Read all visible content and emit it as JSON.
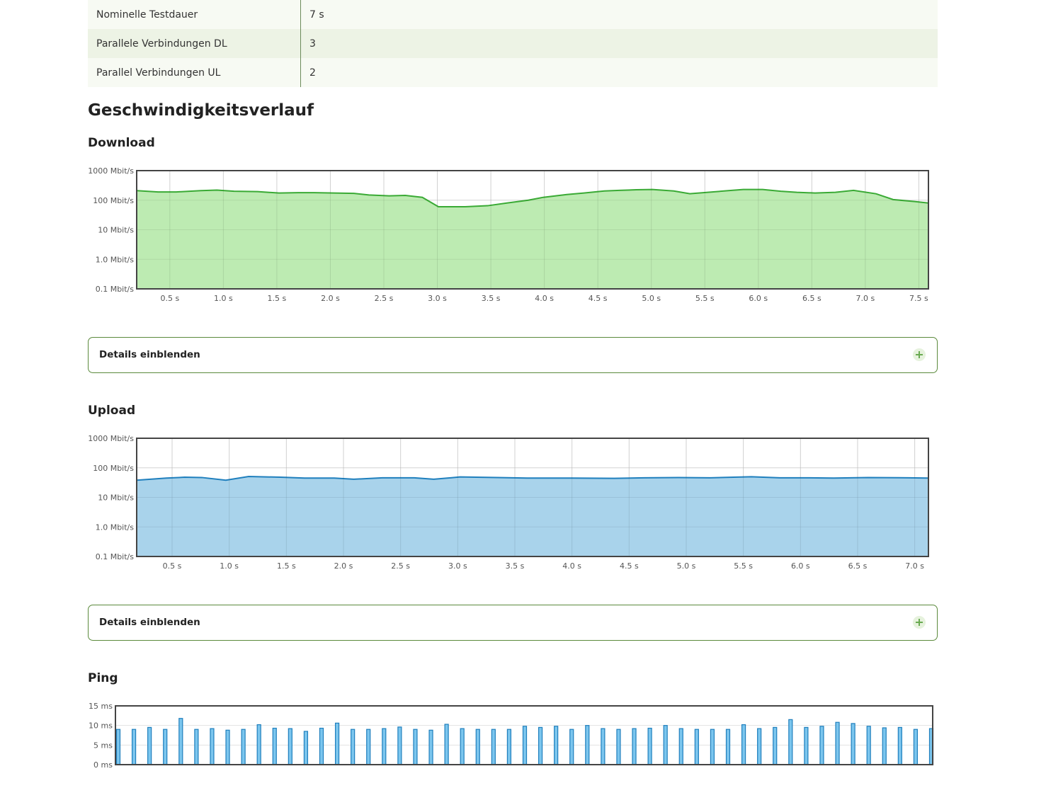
{
  "info_rows": [
    {
      "label": "Nominelle Testdauer",
      "value": "7 s"
    },
    {
      "label": "Parallele Verbindungen DL",
      "value": "3"
    },
    {
      "label": "Parallel Verbindungen UL",
      "value": "2"
    }
  ],
  "section_title": "Geschwindigkeitsverlauf",
  "details_label": "Details einblenden",
  "plus_icon": "plus-circle-icon",
  "chart_data": [
    {
      "type": "area",
      "heading": "Download",
      "scale": "log",
      "ylim": [
        0.1,
        1000
      ],
      "y_ticks": [
        "1000 Mbit/s",
        "100 Mbit/s",
        "10 Mbit/s",
        "1.0 Mbit/s",
        "0.1 Mbit/s"
      ],
      "y_tick_values": [
        1000,
        100,
        10,
        1,
        0.1
      ],
      "xlim": [
        0.19,
        7.59
      ],
      "x_ticks": [
        "0.5 s",
        "1.0 s",
        "1.5 s",
        "2.0 s",
        "2.5 s",
        "3.0 s",
        "3.5 s",
        "4.0 s",
        "4.5 s",
        "5.0 s",
        "5.5 s",
        "6.0 s",
        "6.5 s",
        "7.0 s",
        "7.5 s"
      ],
      "x_tick_values": [
        0.5,
        1.0,
        1.5,
        2.0,
        2.5,
        3.0,
        3.5,
        4.0,
        4.5,
        5.0,
        5.5,
        6.0,
        6.5,
        7.0,
        7.5
      ],
      "x": [
        0.19,
        0.39,
        0.56,
        0.79,
        0.94,
        1.1,
        1.32,
        1.52,
        1.7,
        1.85,
        2.03,
        2.22,
        2.36,
        2.55,
        2.7,
        2.86,
        3.01,
        3.26,
        3.47,
        3.65,
        3.85,
        3.99,
        4.21,
        4.37,
        4.56,
        4.7,
        4.86,
        5.01,
        5.21,
        5.36,
        5.57,
        5.72,
        5.86,
        6.04,
        6.21,
        6.36,
        6.53,
        6.72,
        6.89,
        7.1,
        7.26,
        7.46,
        7.59
      ],
      "y": [
        210,
        190,
        190,
        210,
        220,
        200,
        195,
        175,
        180,
        180,
        175,
        170,
        150,
        140,
        145,
        125,
        60,
        60,
        65,
        80,
        100,
        125,
        155,
        175,
        205,
        215,
        225,
        230,
        205,
        165,
        190,
        210,
        230,
        230,
        200,
        185,
        175,
        185,
        215,
        165,
        105,
        90,
        80
      ],
      "line_color": "#3aaa35",
      "fill_color": "#b2e8a5"
    },
    {
      "type": "area",
      "heading": "Upload",
      "scale": "log",
      "ylim": [
        0.1,
        1000
      ],
      "y_ticks": [
        "1000 Mbit/s",
        "100 Mbit/s",
        "10 Mbit/s",
        "1.0 Mbit/s",
        "0.1 Mbit/s"
      ],
      "y_tick_values": [
        1000,
        100,
        10,
        1,
        0.1
      ],
      "xlim": [
        0.19,
        7.12
      ],
      "x_ticks": [
        "0.5 s",
        "1.0 s",
        "1.5 s",
        "2.0 s",
        "2.5 s",
        "3.0 s",
        "3.5 s",
        "4.0 s",
        "4.5 s",
        "5.0 s",
        "5.5 s",
        "6.0 s",
        "6.5 s",
        "7.0 s"
      ],
      "x_tick_values": [
        0.5,
        1.0,
        1.5,
        2.0,
        2.5,
        3.0,
        3.5,
        4.0,
        4.5,
        5.0,
        5.5,
        6.0,
        6.5,
        7.0
      ],
      "x": [
        0.19,
        0.45,
        0.61,
        0.76,
        0.97,
        1.17,
        1.45,
        1.66,
        1.92,
        2.09,
        2.34,
        2.62,
        2.79,
        3.02,
        3.35,
        3.61,
        4.0,
        4.37,
        4.63,
        4.93,
        5.21,
        5.57,
        5.82,
        6.01,
        6.29,
        6.59,
        6.95,
        7.12
      ],
      "y": [
        38,
        45,
        48,
        47,
        38,
        51,
        48,
        45,
        45,
        41,
        46,
        46,
        41,
        49,
        47,
        45,
        45,
        44,
        46,
        47,
        46,
        50,
        46,
        46,
        45,
        47,
        46,
        45
      ],
      "line_color": "#1f7fbd",
      "fill_color": "#9acbe8"
    },
    {
      "type": "bar",
      "heading": "Ping",
      "ylim": [
        0,
        15
      ],
      "y_ticks": [
        "15 ms",
        "10 ms",
        "5 ms",
        "0 ms"
      ],
      "y_tick_values": [
        15,
        10,
        5,
        0
      ],
      "values": [
        9,
        9,
        9.5,
        9,
        11.8,
        9,
        9.2,
        8.8,
        9,
        10.2,
        9.3,
        9.2,
        8.5,
        9.3,
        10.6,
        9,
        9,
        9.2,
        9.6,
        9,
        8.8,
        10.3,
        9.2,
        9,
        9,
        9,
        9.8,
        9.5,
        9.8,
        9,
        10,
        9.2,
        9,
        9.2,
        9.3,
        10,
        9.2,
        9,
        9,
        9,
        10.2,
        9.2,
        9.5,
        11.5,
        9.5,
        9.8,
        10.8,
        10.5,
        9.8,
        9.4,
        9.5,
        9,
        9.2
      ],
      "bar_color": "#7cc6ee",
      "bar_stroke": "#1f7fbd"
    }
  ]
}
